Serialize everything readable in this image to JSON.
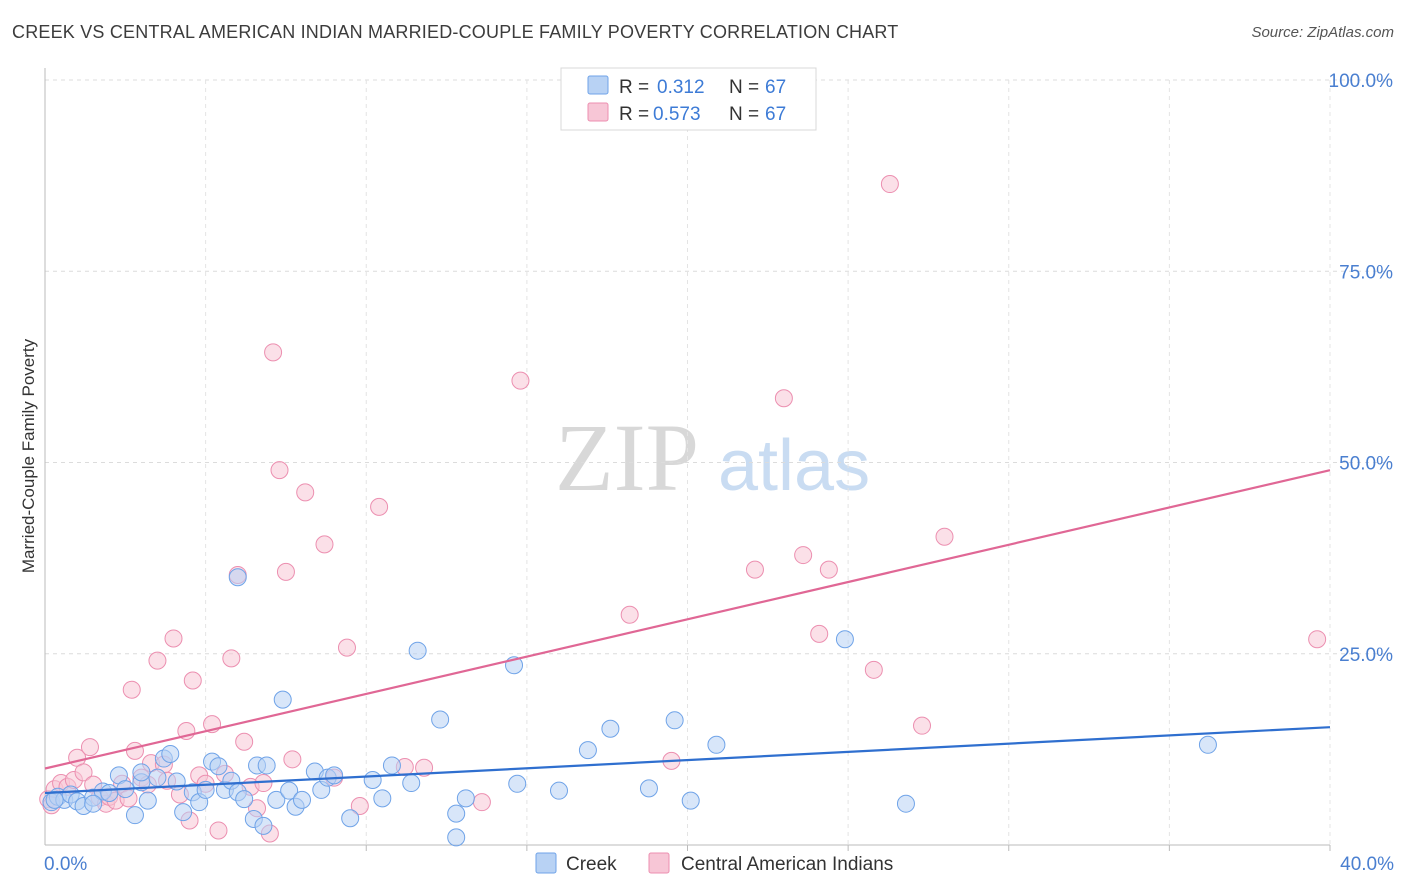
{
  "header": {
    "title": "CREEK VS CENTRAL AMERICAN INDIAN MARRIED-COUPLE FAMILY POVERTY CORRELATION CHART",
    "source": "Source: ZipAtlas.com"
  },
  "watermark": {
    "zip": "ZIP",
    "atlas": "atlas"
  },
  "colors": {
    "creek": "#6fa3e8",
    "creek_fill": "#b8d2f4",
    "creek_line": "#2f6fcf",
    "cai": "#ec8fb0",
    "cai_fill": "#f7c6d6",
    "cai_line": "#e06795",
    "axis_text": "#4a7fd0"
  },
  "legend": {
    "creek": {
      "r_label": "R =",
      "r_value": "0.312",
      "n_label": "N =",
      "n_value": "67"
    },
    "cai": {
      "r_label": "R =",
      "r_value": "0.573",
      "n_label": "N =",
      "n_value": "67"
    }
  },
  "chart_data": {
    "type": "scatter",
    "title": "CREEK VS CENTRAL AMERICAN INDIAN MARRIED-COUPLE FAMILY POVERTY CORRELATION CHART",
    "xlabel": "",
    "ylabel": "Married-Couple Family Poverty",
    "xlim": [
      0,
      40
    ],
    "ylim": [
      0,
      100
    ],
    "x_tick_labels": [
      "0.0%",
      "40.0%"
    ],
    "y_ticks": [
      25,
      50,
      75,
      100
    ],
    "y_tick_labels": [
      "25.0%",
      "50.0%",
      "75.0%",
      "100.0%"
    ],
    "grid": true,
    "legend_position": "top-center",
    "series": [
      {
        "name": "Creek",
        "r": 0.312,
        "n": 67,
        "trend": {
          "x": [
            0,
            40
          ],
          "y": [
            6.8,
            15.4
          ]
        },
        "points": [
          [
            0.2,
            5.6
          ],
          [
            0.4,
            6.3
          ],
          [
            0.6,
            5.9
          ],
          [
            0.8,
            6.6
          ],
          [
            1.0,
            5.7
          ],
          [
            1.2,
            5.1
          ],
          [
            1.5,
            6.2
          ],
          [
            1.8,
            7.0
          ],
          [
            2.0,
            6.8
          ],
          [
            2.3,
            9.1
          ],
          [
            2.5,
            7.3
          ],
          [
            2.8,
            3.9
          ],
          [
            3.0,
            8.2
          ],
          [
            3.2,
            5.8
          ],
          [
            3.5,
            8.8
          ],
          [
            3.7,
            11.3
          ],
          [
            3.9,
            11.9
          ],
          [
            4.1,
            8.3
          ],
          [
            4.3,
            4.3
          ],
          [
            4.6,
            6.9
          ],
          [
            4.8,
            5.6
          ],
          [
            5.0,
            7.2
          ],
          [
            5.2,
            10.9
          ],
          [
            5.4,
            10.3
          ],
          [
            5.6,
            7.2
          ],
          [
            5.8,
            8.4
          ],
          [
            6.0,
            6.9
          ],
          [
            6.2,
            6.0
          ],
          [
            6.5,
            3.4
          ],
          [
            6.6,
            10.4
          ],
          [
            6.9,
            10.4
          ],
          [
            6.8,
            2.5
          ],
          [
            7.2,
            5.9
          ],
          [
            7.4,
            19.0
          ],
          [
            7.6,
            7.1
          ],
          [
            7.8,
            5.0
          ],
          [
            8.0,
            5.9
          ],
          [
            8.4,
            9.6
          ],
          [
            8.6,
            7.2
          ],
          [
            8.8,
            8.8
          ],
          [
            9.0,
            9.1
          ],
          [
            9.5,
            3.5
          ],
          [
            10.2,
            8.5
          ],
          [
            10.5,
            6.1
          ],
          [
            10.8,
            10.4
          ],
          [
            11.4,
            8.1
          ],
          [
            11.6,
            25.4
          ],
          [
            12.3,
            16.4
          ],
          [
            12.8,
            1.0
          ],
          [
            12.8,
            4.1
          ],
          [
            13.1,
            6.1
          ],
          [
            14.6,
            23.5
          ],
          [
            14.7,
            8.0
          ],
          [
            16.0,
            7.1
          ],
          [
            16.9,
            12.4
          ],
          [
            17.6,
            15.2
          ],
          [
            18.8,
            7.4
          ],
          [
            19.6,
            16.3
          ],
          [
            20.1,
            5.8
          ],
          [
            20.9,
            13.1
          ],
          [
            24.9,
            26.9
          ],
          [
            26.8,
            5.4
          ],
          [
            36.2,
            13.1
          ],
          [
            6.0,
            35.0
          ],
          [
            3.0,
            9.5
          ],
          [
            1.5,
            5.4
          ],
          [
            0.3,
            5.9
          ]
        ]
      },
      {
        "name": "Central American Indians",
        "r": 0.573,
        "n": 67,
        "trend": {
          "x": [
            0,
            40
          ],
          "y": [
            10.0,
            49.0
          ]
        },
        "points": [
          [
            0.1,
            6.0
          ],
          [
            0.3,
            7.3
          ],
          [
            0.5,
            8.1
          ],
          [
            0.7,
            7.6
          ],
          [
            0.9,
            8.5
          ],
          [
            1.0,
            11.4
          ],
          [
            1.2,
            9.5
          ],
          [
            1.4,
            12.8
          ],
          [
            1.5,
            7.9
          ],
          [
            1.7,
            6.2
          ],
          [
            1.9,
            5.4
          ],
          [
            2.0,
            6.3
          ],
          [
            2.2,
            5.8
          ],
          [
            2.4,
            8.0
          ],
          [
            2.6,
            6.1
          ],
          [
            2.7,
            20.3
          ],
          [
            2.8,
            12.3
          ],
          [
            3.0,
            8.8
          ],
          [
            3.2,
            7.9
          ],
          [
            3.3,
            10.7
          ],
          [
            3.5,
            24.1
          ],
          [
            3.7,
            10.5
          ],
          [
            3.8,
            8.4
          ],
          [
            4.0,
            27.0
          ],
          [
            4.2,
            6.6
          ],
          [
            4.4,
            14.9
          ],
          [
            4.5,
            3.2
          ],
          [
            4.6,
            21.5
          ],
          [
            4.8,
            9.1
          ],
          [
            5.0,
            8.0
          ],
          [
            5.2,
            15.8
          ],
          [
            5.4,
            1.9
          ],
          [
            5.6,
            9.3
          ],
          [
            5.8,
            24.4
          ],
          [
            6.0,
            35.3
          ],
          [
            6.2,
            13.5
          ],
          [
            6.4,
            7.6
          ],
          [
            6.6,
            4.8
          ],
          [
            6.8,
            8.1
          ],
          [
            7.0,
            1.5
          ],
          [
            7.1,
            64.4
          ],
          [
            7.3,
            49.0
          ],
          [
            7.5,
            35.7
          ],
          [
            7.7,
            11.2
          ],
          [
            8.1,
            46.1
          ],
          [
            8.7,
            39.3
          ],
          [
            9.0,
            8.8
          ],
          [
            9.4,
            25.8
          ],
          [
            9.8,
            5.1
          ],
          [
            10.4,
            44.2
          ],
          [
            11.2,
            10.2
          ],
          [
            11.8,
            10.1
          ],
          [
            13.6,
            5.6
          ],
          [
            14.8,
            60.7
          ],
          [
            18.2,
            30.1
          ],
          [
            19.5,
            11.0
          ],
          [
            22.1,
            36.0
          ],
          [
            23.0,
            58.4
          ],
          [
            23.6,
            37.9
          ],
          [
            24.1,
            27.6
          ],
          [
            24.4,
            36.0
          ],
          [
            25.8,
            22.9
          ],
          [
            26.3,
            86.4
          ],
          [
            27.3,
            15.6
          ],
          [
            28.0,
            40.3
          ],
          [
            39.6,
            26.9
          ],
          [
            0.2,
            5.2
          ]
        ]
      }
    ]
  },
  "bottom_legend": {
    "creek_label": "Creek",
    "cai_label": "Central American Indians"
  }
}
